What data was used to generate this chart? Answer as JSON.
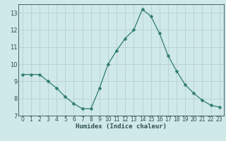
{
  "x": [
    0,
    1,
    2,
    3,
    4,
    5,
    6,
    7,
    8,
    9,
    10,
    11,
    12,
    13,
    14,
    15,
    16,
    17,
    18,
    19,
    20,
    21,
    22,
    23
  ],
  "y": [
    9.4,
    9.4,
    9.4,
    9.0,
    8.6,
    8.1,
    7.7,
    7.4,
    7.4,
    8.6,
    10.0,
    10.8,
    11.5,
    12.0,
    13.2,
    12.8,
    11.8,
    10.5,
    9.6,
    8.8,
    8.3,
    7.9,
    7.6,
    7.5
  ],
  "line_color": "#2e7d6e",
  "marker": "D",
  "marker_size": 2.5,
  "bg_color": "#cfe8e8",
  "grid_color": "#b8d0d0",
  "tick_color": "#2e5050",
  "xlabel": "Humidex (Indice chaleur)",
  "ylim": [
    7,
    13.5
  ],
  "xlim": [
    -0.5,
    23.5
  ],
  "yticks": [
    7,
    8,
    9,
    10,
    11,
    12,
    13
  ],
  "xticks": [
    0,
    1,
    2,
    3,
    4,
    5,
    6,
    7,
    8,
    9,
    10,
    11,
    12,
    13,
    14,
    15,
    16,
    17,
    18,
    19,
    20,
    21,
    22,
    23
  ]
}
